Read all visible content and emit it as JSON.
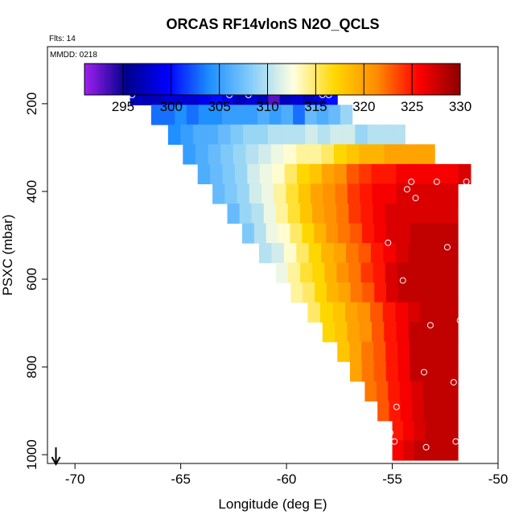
{
  "chart_data": {
    "type": "heatmap",
    "title": "ORCAS RF14vlonS N2O_QCLS",
    "flights_label": "Flts: 14",
    "date_label": "MMDD: 0218",
    "xlabel": "Longitude (deg E)",
    "ylabel": "PSXC (mbar)",
    "xlim": [
      -71.3,
      -50
    ],
    "ylim": [
      1020,
      70
    ],
    "x_ticks": [
      -70,
      -65,
      -60,
      -55,
      -50
    ],
    "x_tick_labels": [
      "-70",
      "-65",
      "-60",
      "-55",
      "-50"
    ],
    "y_ticks": [
      200,
      400,
      600,
      800,
      1000
    ],
    "y_tick_labels": [
      "200",
      "400",
      "600",
      "800",
      "1000"
    ],
    "colorbar": {
      "min": 291,
      "max": 330,
      "ticks": [
        295,
        300,
        305,
        310,
        315,
        320,
        325,
        330
      ],
      "tick_labels": [
        "295",
        "300",
        "305",
        "310",
        "315",
        "320",
        "325",
        "330"
      ],
      "colors": [
        "#a020f0",
        "#00008b",
        "#0000ff",
        "#1e90ff",
        "#87cefa",
        "#ffffe0",
        "#ffd700",
        "#ff8c00",
        "#ff0000",
        "#8b0000"
      ]
    },
    "grid": {
      "lon_step": 0.75,
      "p_step": 45,
      "rows": [
        {
          "p": 180,
          "lon_start": -67.4,
          "lon_end": -57.6,
          "values": [
            297,
            297,
            297,
            298,
            298,
            298,
            299,
            300,
            299,
            297,
            298,
            297,
            293,
            297,
            298,
            297,
            298,
            300
          ]
        },
        {
          "p": 225,
          "lon_start": -66.4,
          "lon_end": -56.9,
          "values": [
            303,
            303,
            304,
            303,
            304,
            304,
            305,
            305,
            305,
            306,
            305,
            306,
            303,
            307,
            306,
            307,
            309
          ]
        },
        {
          "p": 270,
          "lon_start": -65.6,
          "lon_end": -54.4,
          "values": [
            304,
            305,
            306,
            306,
            307,
            308,
            309,
            309,
            310,
            310,
            310,
            311,
            310,
            311,
            311,
            309,
            310,
            310,
            310
          ]
        },
        {
          "p": 315,
          "lon_start": -64.9,
          "lon_end": -53,
          "values": [
            305,
            306,
            307,
            308,
            309,
            310,
            311,
            312,
            313,
            314,
            314,
            315,
            317,
            318,
            319,
            319,
            320,
            320,
            320,
            320
          ]
        },
        {
          "p": 360,
          "lon_start": -64.2,
          "lon_end": -51.3,
          "values": [
            306,
            307,
            308,
            309,
            311,
            312,
            313,
            315,
            317,
            318,
            320,
            321,
            323,
            324,
            325,
            325,
            326,
            326,
            326,
            326,
            326,
            327
          ]
        },
        {
          "p": 405,
          "lon_start": -63.5,
          "lon_end": -51.9,
          "values": [
            307,
            308,
            309,
            311,
            312,
            314,
            316,
            318,
            320,
            321,
            322,
            324,
            325,
            326,
            326,
            327,
            327,
            327,
            327,
            327
          ]
        },
        {
          "p": 450,
          "lon_start": -62.8,
          "lon_end": -51.9,
          "values": [
            307,
            309,
            310,
            312,
            314,
            316,
            318,
            320,
            321,
            322,
            324,
            325,
            326,
            327,
            327,
            327,
            327,
            327,
            327
          ]
        },
        {
          "p": 495,
          "lon_start": -62.1,
          "lon_end": -51.9,
          "values": [
            308,
            310,
            312,
            313,
            315,
            317,
            319,
            321,
            322,
            323,
            325,
            326,
            327,
            327,
            328,
            328,
            328,
            328
          ]
        },
        {
          "p": 540,
          "lon_start": -61.3,
          "lon_end": -51.9,
          "values": [
            310,
            311,
            313,
            315,
            317,
            319,
            320,
            322,
            323,
            325,
            326,
            327,
            328,
            328,
            328,
            328
          ]
        },
        {
          "p": 585,
          "lon_start": -60.5,
          "lon_end": -51.9,
          "values": [
            312,
            314,
            316,
            317,
            319,
            321,
            322,
            324,
            325,
            327,
            328,
            328,
            328,
            328,
            328
          ]
        },
        {
          "p": 630,
          "lon_start": -59.8,
          "lon_end": -51.9,
          "values": [
            314,
            315,
            317,
            319,
            320,
            322,
            323,
            325,
            327,
            328,
            328,
            328,
            328,
            328
          ]
        },
        {
          "p": 675,
          "lon_start": -59,
          "lon_end": -51.9,
          "values": [
            315,
            317,
            318,
            320,
            321,
            323,
            325,
            326,
            327,
            328,
            328,
            328
          ]
        },
        {
          "p": 720,
          "lon_start": -58.3,
          "lon_end": -51.9,
          "values": [
            317,
            318,
            320,
            321,
            323,
            325,
            326,
            328,
            328,
            328,
            328
          ]
        },
        {
          "p": 765,
          "lon_start": -57.6,
          "lon_end": -51.9,
          "values": [
            318,
            320,
            322,
            323,
            325,
            326,
            328,
            328,
            328,
            328
          ]
        },
        {
          "p": 810,
          "lon_start": -57,
          "lon_end": -51.9,
          "values": [
            320,
            322,
            323,
            325,
            326,
            328,
            328,
            328,
            328
          ]
        },
        {
          "p": 855,
          "lon_start": -56.3,
          "lon_end": -51.9,
          "values": [
            322,
            323,
            325,
            326,
            327,
            328,
            328,
            328
          ]
        },
        {
          "p": 900,
          "lon_start": -55.7,
          "lon_end": -51.9,
          "values": [
            323,
            325,
            326,
            327,
            328,
            328,
            328
          ]
        },
        {
          "p": 945,
          "lon_start": -55,
          "lon_end": -51.9,
          "values": [
            325,
            326,
            327,
            328,
            328,
            328
          ]
        },
        {
          "p": 990,
          "lon_start": -55,
          "lon_end": -51.9,
          "values": [
            326,
            327,
            328,
            328,
            328,
            328
          ]
        }
      ]
    },
    "markers": [
      {
        "lon": -67.3,
        "p": 180
      },
      {
        "lon": -62.7,
        "p": 180
      },
      {
        "lon": -61.8,
        "p": 180
      },
      {
        "lon": -58.3,
        "p": 180
      },
      {
        "lon": -58,
        "p": 180
      },
      {
        "lon": -54.1,
        "p": 378
      },
      {
        "lon": -52.9,
        "p": 378
      },
      {
        "lon": -51.5,
        "p": 378
      },
      {
        "lon": -54.3,
        "p": 395
      },
      {
        "lon": -53.9,
        "p": 415
      },
      {
        "lon": -55.2,
        "p": 517
      },
      {
        "lon": -52.4,
        "p": 527
      },
      {
        "lon": -54.5,
        "p": 603
      },
      {
        "lon": -51.8,
        "p": 694
      },
      {
        "lon": -53.2,
        "p": 705
      },
      {
        "lon": -53.5,
        "p": 812
      },
      {
        "lon": -52.1,
        "p": 835
      },
      {
        "lon": -54.8,
        "p": 891
      },
      {
        "lon": -55.1,
        "p": 950
      },
      {
        "lon": -54.9,
        "p": 970
      },
      {
        "lon": -52,
        "p": 970
      },
      {
        "lon": -53.4,
        "p": 983
      }
    ],
    "arrow": {
      "lon": -70.9
    }
  }
}
